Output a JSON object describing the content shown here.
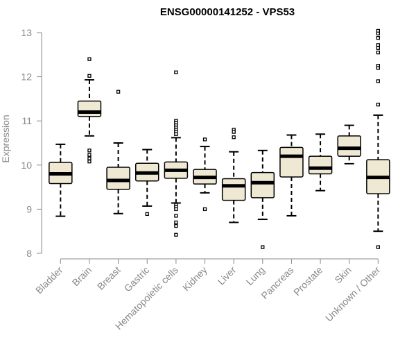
{
  "chart_data": {
    "type": "box",
    "title": "ENSG00000141252 - VPS53",
    "xlabel": "",
    "ylabel": "Expression",
    "ylim": [
      8,
      13
    ],
    "yticks": [
      8,
      9,
      10,
      11,
      12,
      13
    ],
    "grid": false,
    "legend": "none",
    "box_fill": "#efe8d2",
    "categories": [
      "Bladder",
      "Brain",
      "Breast",
      "Gastric",
      "Hematopoietic cells",
      "Kidney",
      "Liver",
      "Lung",
      "Pancreas",
      "Prostate",
      "Skin",
      "Unknown / Other"
    ],
    "boxes": [
      {
        "min": 8.84,
        "q1": 9.58,
        "median": 9.8,
        "q3": 10.06,
        "max": 10.47,
        "outliers": []
      },
      {
        "min": 10.66,
        "q1": 11.1,
        "median": 11.2,
        "q3": 11.45,
        "max": 11.93,
        "outliers": [
          12.4,
          12.02,
          10.33,
          10.23,
          10.15,
          10.08
        ]
      },
      {
        "min": 8.9,
        "q1": 9.45,
        "median": 9.65,
        "q3": 9.95,
        "max": 10.5,
        "outliers": [
          11.66
        ]
      },
      {
        "min": 9.07,
        "q1": 9.64,
        "median": 9.82,
        "q3": 10.04,
        "max": 10.35,
        "outliers": [
          8.89
        ]
      },
      {
        "min": 9.14,
        "q1": 9.7,
        "median": 9.88,
        "q3": 10.07,
        "max": 10.62,
        "outliers": [
          12.1,
          11.0,
          10.95,
          10.9,
          10.85,
          10.8,
          10.75,
          10.7,
          9.1,
          9.05,
          9.0,
          8.85,
          8.7,
          8.62,
          8.42
        ]
      },
      {
        "min": 9.37,
        "q1": 9.57,
        "median": 9.72,
        "q3": 9.9,
        "max": 10.42,
        "outliers": [
          10.58,
          9.0
        ]
      },
      {
        "min": 8.7,
        "q1": 9.2,
        "median": 9.53,
        "q3": 9.69,
        "max": 10.3,
        "outliers": [
          10.8,
          10.75,
          10.63
        ]
      },
      {
        "min": 8.77,
        "q1": 9.26,
        "median": 9.6,
        "q3": 9.83,
        "max": 10.33,
        "outliers": [
          8.14
        ]
      },
      {
        "min": 8.85,
        "q1": 9.73,
        "median": 10.2,
        "q3": 10.4,
        "max": 10.68,
        "outliers": []
      },
      {
        "min": 9.42,
        "q1": 9.8,
        "median": 9.93,
        "q3": 10.2,
        "max": 10.7,
        "outliers": []
      },
      {
        "min": 10.03,
        "q1": 10.2,
        "median": 10.38,
        "q3": 10.66,
        "max": 10.9,
        "outliers": []
      },
      {
        "min": 8.5,
        "q1": 9.35,
        "median": 9.72,
        "q3": 10.12,
        "max": 11.13,
        "outliers": [
          13.04,
          12.98,
          12.88,
          12.72,
          12.65,
          12.55,
          12.25,
          12.2,
          11.9,
          11.37,
          8.14
        ]
      }
    ]
  }
}
